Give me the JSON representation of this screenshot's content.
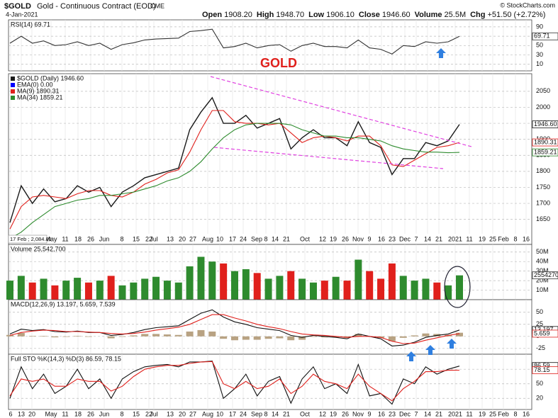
{
  "header": {
    "symbol": "$GOLD",
    "name": "Gold - Continuous Contract (EOD)",
    "exchange": "CME",
    "date": "4-Jan-2021",
    "quote": [
      {
        "label": "Open",
        "value": "1908.20"
      },
      {
        "label": "High",
        "value": "1948.70"
      },
      {
        "label": "Low",
        "value": "1906.10"
      },
      {
        "label": "Close",
        "value": "1946.60"
      },
      {
        "label": "Volume",
        "value": "25.5M"
      },
      {
        "label": "Chg",
        "value": "+51.50 (+2.72%)"
      }
    ],
    "credit": "© StockCharts.com"
  },
  "annotation": "GOLD",
  "x_labels": [
    "6",
    "13",
    "20",
    "May",
    "11",
    "18",
    "26",
    "Jun",
    "8",
    "15",
    "22",
    "Jul",
    "13",
    "20",
    "27",
    "Aug",
    "10",
    "17",
    "24",
    "Sep",
    "8",
    "14",
    "21",
    "Oct",
    "12",
    "19",
    "26",
    "Nov",
    "9",
    "16",
    "23",
    "Dec",
    "7",
    "14",
    "21",
    "2021",
    "11",
    "19",
    "25",
    "Feb",
    "8",
    "16"
  ],
  "chart_data": [
    {
      "type": "line",
      "title": "RSI(14) 69.71",
      "ylim": [
        -4,
        105
      ],
      "yticks": [
        10,
        30,
        50,
        70,
        90
      ],
      "series": [
        {
          "color": "#333333",
          "values": [
            55,
            70,
            55,
            60,
            50,
            52,
            58,
            50,
            55,
            42,
            52,
            56,
            62,
            64,
            65,
            66,
            80,
            82,
            85,
            45,
            48,
            55,
            45,
            50,
            52,
            38,
            50,
            55,
            48,
            48,
            45,
            62,
            45,
            42,
            32,
            50,
            48,
            58,
            55,
            58,
            69.71
          ]
        }
      ],
      "tags": [
        "69.71"
      ]
    },
    {
      "type": "line",
      "ylim": [
        1605,
        2105
      ],
      "yticks": [
        1650,
        1700,
        1750,
        1800,
        1850,
        1900,
        1950,
        2000,
        2050
      ],
      "cursor_label": "17 Feb ; 2,084.81",
      "legend_only": [
        {
          "name": "EMA(0) 0.00",
          "color": "#0000ff"
        }
      ],
      "series": [
        {
          "name": "$GOLD (Daily) 1946.60",
          "color": "#1a1a1a",
          "values": [
            1640,
            1755,
            1700,
            1745,
            1705,
            1715,
            1755,
            1735,
            1750,
            1690,
            1735,
            1755,
            1780,
            1790,
            1800,
            1810,
            1930,
            1985,
            2030,
            1950,
            1950,
            1975,
            1935,
            1950,
            1965,
            1870,
            1905,
            1930,
            1905,
            1905,
            1880,
            1955,
            1890,
            1875,
            1790,
            1840,
            1840,
            1890,
            1880,
            1895,
            1946.6
          ]
        },
        {
          "name": "MA(9) 1890.31",
          "color": "#e0201c",
          "values": [
            1620,
            1690,
            1720,
            1725,
            1720,
            1715,
            1730,
            1740,
            1740,
            1725,
            1720,
            1735,
            1760,
            1775,
            1795,
            1805,
            1860,
            1930,
            1990,
            1990,
            1955,
            1950,
            1950,
            1945,
            1950,
            1920,
            1890,
            1905,
            1910,
            1905,
            1895,
            1910,
            1910,
            1880,
            1820,
            1815,
            1835,
            1855,
            1875,
            1880,
            1890.31
          ]
        },
        {
          "name": "MA(34) 1859.21",
          "color": "#2e8b2e",
          "values": [
            1590,
            1610,
            1640,
            1665,
            1690,
            1700,
            1710,
            1715,
            1725,
            1725,
            1730,
            1735,
            1745,
            1755,
            1770,
            1780,
            1800,
            1830,
            1870,
            1905,
            1930,
            1945,
            1950,
            1950,
            1950,
            1945,
            1930,
            1920,
            1910,
            1910,
            1905,
            1905,
            1900,
            1895,
            1880,
            1870,
            1865,
            1860,
            1860,
            1858,
            1859.21
          ]
        }
      ],
      "tags": [
        "1946.60",
        "1890.31",
        "1859.21"
      ]
    },
    {
      "type": "bar",
      "title": "Volume 25,542,700",
      "ylim": [
        0,
        58000000
      ],
      "up_color": "#2e8b2e",
      "down_color": "#e0201c",
      "yticks": [
        {
          "value": 10000000,
          "label": "10M"
        },
        {
          "value": 20000000,
          "label": "20M"
        },
        {
          "value": 30000000,
          "label": "30M"
        },
        {
          "value": 40000000,
          "label": "40M"
        },
        {
          "value": 50000000,
          "label": "50M"
        }
      ],
      "series": [
        {
          "values": [
            20000000,
            25000000,
            18000000,
            22000000,
            15000000,
            20000000,
            23000000,
            18000000,
            20000000,
            25000000,
            15000000,
            18000000,
            22000000,
            24000000,
            20000000,
            18000000,
            35000000,
            45000000,
            40000000,
            38000000,
            30000000,
            32000000,
            28000000,
            22000000,
            25000000,
            30000000,
            22000000,
            18000000,
            20000000,
            24000000,
            20000000,
            42000000,
            30000000,
            22000000,
            38000000,
            25000000,
            20000000,
            22000000,
            18000000,
            15000000,
            25542700
          ]
        }
      ],
      "tags": [
        "25542700"
      ]
    },
    {
      "type": "macd",
      "title": "MACD(12,26,9) 13.197, 5.659, 7.539",
      "ylim": [
        -37,
        76
      ],
      "yticks": [
        -25,
        0,
        25,
        50
      ],
      "histogram_color": "#b8a282",
      "histogram": [
        3,
        7,
        1,
        1,
        -2,
        -1,
        1,
        -1,
        0,
        -4,
        -1,
        2,
        5,
        5,
        4,
        3,
        10,
        13,
        10,
        -5,
        -8,
        -7,
        -7,
        -5,
        -4,
        -8,
        -7,
        -1,
        -2,
        -2,
        -3,
        5,
        0,
        -3,
        -10,
        -3,
        2,
        6,
        5,
        3,
        7.539
      ],
      "series": [
        {
          "color": "#111111",
          "values": [
            5,
            15,
            12,
            14,
            10,
            9,
            11,
            8,
            8,
            2,
            4,
            8,
            14,
            18,
            20,
            22,
            35,
            48,
            55,
            40,
            30,
            25,
            18,
            15,
            12,
            2,
            -2,
            2,
            0,
            -2,
            -5,
            5,
            0,
            -5,
            -20,
            -18,
            -12,
            -2,
            2,
            5,
            13.197
          ]
        },
        {
          "color": "#e0201c",
          "values": [
            2,
            8,
            11,
            13,
            12,
            10,
            10,
            9,
            8,
            6,
            5,
            6,
            9,
            13,
            16,
            19,
            25,
            35,
            45,
            45,
            38,
            32,
            25,
            20,
            16,
            10,
            5,
            3,
            2,
            0,
            -2,
            0,
            0,
            -2,
            -10,
            -15,
            -14,
            -8,
            -3,
            2,
            5.659
          ]
        }
      ],
      "tags": [
        "13.197",
        "5.659"
      ]
    },
    {
      "type": "line",
      "title": "Full STO %K(14,3) %D(3) 86.59, 78.15",
      "ylim": [
        -3,
        111
      ],
      "yticks": [
        20,
        50,
        80
      ],
      "series": [
        {
          "color": "#111111",
          "values": [
            20,
            85,
            40,
            70,
            30,
            45,
            80,
            40,
            60,
            20,
            60,
            75,
            85,
            88,
            90,
            85,
            95,
            95,
            97,
            20,
            40,
            70,
            25,
            55,
            65,
            10,
            60,
            85,
            40,
            50,
            30,
            90,
            25,
            30,
            8,
            60,
            50,
            85,
            70,
            80,
            86.59
          ]
        },
        {
          "color": "#e0201c",
          "values": [
            25,
            60,
            55,
            60,
            45,
            45,
            60,
            55,
            55,
            35,
            45,
            65,
            80,
            85,
            88,
            88,
            92,
            95,
            96,
            50,
            40,
            55,
            40,
            45,
            60,
            30,
            45,
            70,
            55,
            50,
            40,
            70,
            45,
            30,
            15,
            40,
            55,
            75,
            75,
            78,
            78.15
          ]
        }
      ],
      "tags": [
        "86.59",
        "78.15"
      ]
    }
  ]
}
